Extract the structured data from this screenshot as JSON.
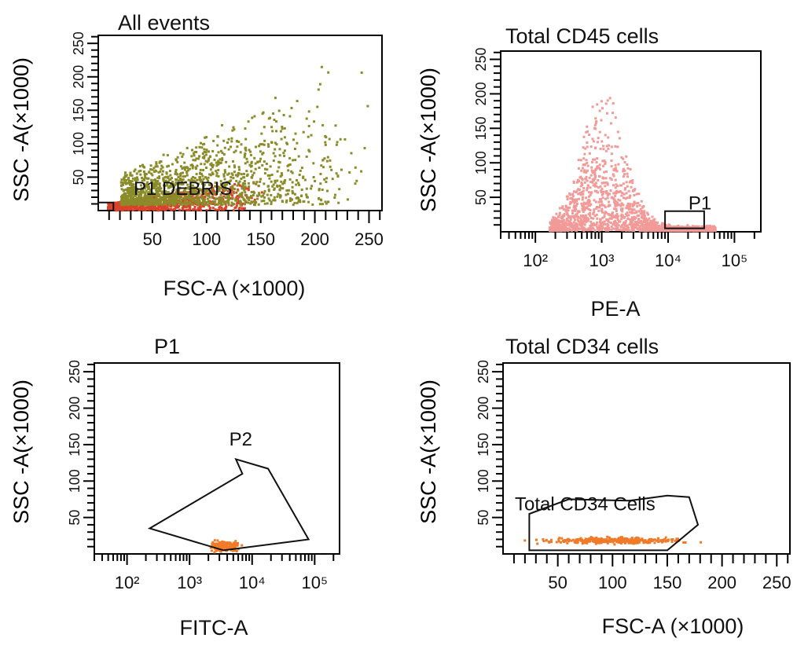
{
  "chart_data": [
    {
      "type": "scatter",
      "title": "All events",
      "xlabel": "FSC-A (×1000)",
      "ylabel": "SSC -A(×1000)",
      "xscale": "linear",
      "xlim": [
        0,
        262
      ],
      "xticks": [
        "50",
        "100",
        "150",
        "200",
        "250"
      ],
      "xtick_values": [
        50,
        100,
        150,
        200,
        250
      ],
      "ylim": [
        0,
        262
      ],
      "yticks": [
        "50",
        "100",
        "150",
        "200",
        "250"
      ],
      "ytick_values": [
        50,
        100,
        150,
        200,
        250
      ],
      "gates": [
        {
          "name": "P1 DEBRIS",
          "points": [
            [
              0,
              0
            ],
            [
              14,
              0
            ],
            [
              14,
              12
            ],
            [
              0,
              12
            ]
          ]
        }
      ],
      "populations": [
        {
          "name": "debris",
          "color": "#d9422b",
          "center": [
            60,
            28
          ],
          "count": 900
        },
        {
          "name": "events",
          "color": "#8a8c2a",
          "center": [
            105,
            95
          ],
          "count": 1400
        }
      ]
    },
    {
      "type": "scatter",
      "title": "Total CD45 cells",
      "xlabel": "PE-A",
      "ylabel": "SSC -A(×1000)",
      "xscale": "log",
      "xlim": [
        30,
        250000
      ],
      "xticks": [
        "10²",
        "10³",
        "10⁴",
        "10⁵"
      ],
      "xtick_values": [
        100,
        1000,
        10000,
        100000
      ],
      "ylim": [
        0,
        262
      ],
      "yticks": [
        "50",
        "100",
        "150",
        "200",
        "250"
      ],
      "ytick_values": [
        50,
        100,
        150,
        200,
        250
      ],
      "gates": [
        {
          "name": "P1",
          "points": [
            [
              9000,
              5
            ],
            [
              35000,
              5
            ],
            [
              35000,
              30
            ],
            [
              9000,
              30
            ]
          ]
        }
      ],
      "populations": [
        {
          "name": "CD45",
          "color": "#f29a98",
          "center": [
            1500,
            60
          ],
          "count": 1800
        }
      ]
    },
    {
      "type": "scatter",
      "title": "P1",
      "xlabel": "FITC-A",
      "ylabel": "SSC -A(×1000)",
      "xscale": "log",
      "xlim": [
        30,
        250000
      ],
      "xticks": [
        "10²",
        "10³",
        "10⁴",
        "10⁵"
      ],
      "xtick_values": [
        100,
        1000,
        10000,
        100000
      ],
      "ylim": [
        0,
        262
      ],
      "yticks": [
        "50",
        "100",
        "150",
        "200",
        "250"
      ],
      "ytick_values": [
        50,
        100,
        150,
        200,
        250
      ],
      "gates": [
        {
          "name": "P2",
          "points": [
            [
              230,
              35
            ],
            [
              7000,
              110
            ],
            [
              5500,
              130
            ],
            [
              18000,
              117
            ],
            [
              80000,
              20
            ],
            [
              3500,
              5
            ]
          ]
        }
      ],
      "populations": [
        {
          "name": "P2",
          "color": "#f07a28",
          "center": [
            5000,
            20
          ],
          "count": 160
        }
      ]
    },
    {
      "type": "scatter",
      "title": "Total CD34 cells",
      "xlabel": "FSC-A (×1000)",
      "ylabel": "SSC -A(×1000)",
      "xscale": "linear",
      "xlim": [
        0,
        262
      ],
      "xticks": [
        "50",
        "100",
        "150",
        "200",
        "250"
      ],
      "xtick_values": [
        50,
        100,
        150,
        200,
        250
      ],
      "ylim": [
        0,
        262
      ],
      "yticks": [
        "50",
        "100",
        "150",
        "200",
        "250"
      ],
      "ytick_values": [
        50,
        100,
        150,
        200,
        250
      ],
      "gates": [
        {
          "name": "Total CD34 Cells",
          "points": [
            [
              24,
              5
            ],
            [
              24,
              55
            ],
            [
              60,
              75
            ],
            [
              115,
              73
            ],
            [
              150,
              80
            ],
            [
              170,
              78
            ],
            [
              178,
              40
            ],
            [
              150,
              5
            ]
          ]
        }
      ],
      "populations": [
        {
          "name": "CD34",
          "color": "#f07a28",
          "center": [
            100,
            22
          ],
          "count": 320
        }
      ]
    }
  ]
}
